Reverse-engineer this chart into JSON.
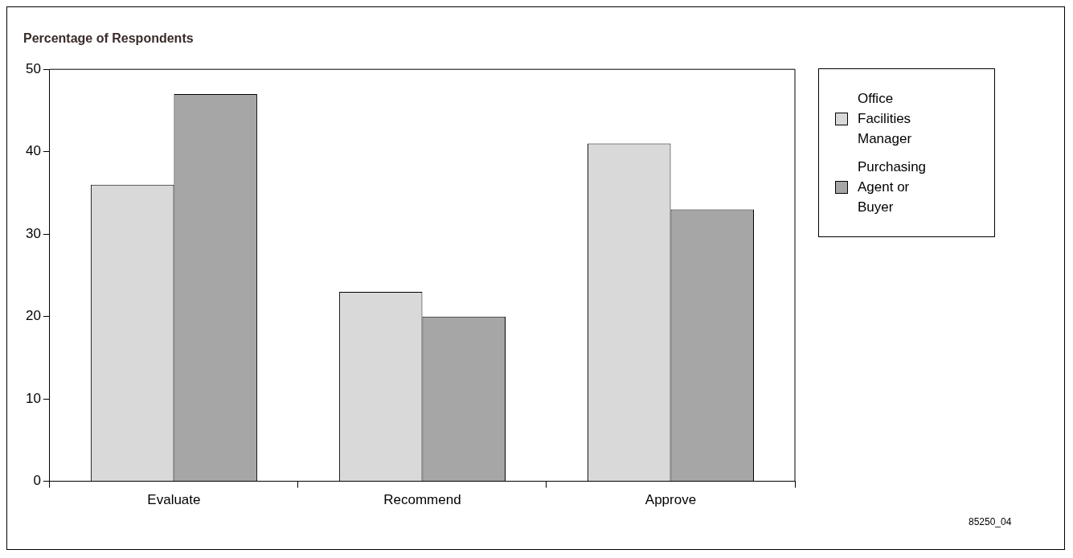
{
  "chart_data": {
    "type": "bar",
    "title": "Percentage of Respondents",
    "categories": [
      "Evaluate",
      "Recommend",
      "Approve"
    ],
    "series": [
      {
        "name": "Office Facilities Manager",
        "color": "#d9d9d9",
        "values": [
          36,
          23,
          41
        ]
      },
      {
        "name": "Purchasing Agent or Buyer",
        "color": "#a6a6a6",
        "values": [
          47,
          20,
          33
        ]
      }
    ],
    "ylim": [
      0,
      50
    ],
    "yticks": [
      0,
      10,
      20,
      30,
      40,
      50
    ],
    "grid": false,
    "legend": "top right",
    "annotations": [
      "85250_04"
    ]
  }
}
